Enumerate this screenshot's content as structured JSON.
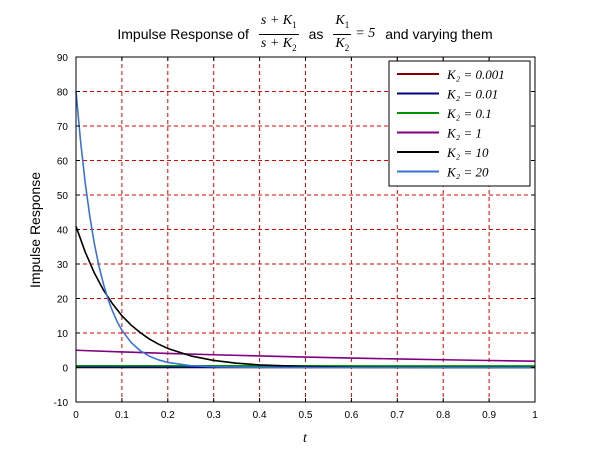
{
  "chart_data": {
    "type": "line",
    "title": {
      "prefix": "Impulse Response of",
      "frac1_num": "s + K",
      "frac1_num_sub": "1",
      "frac1_den": "s + K",
      "frac1_den_sub": "2",
      "mid": "as",
      "frac2_num": "K",
      "frac2_num_sub": "1",
      "frac2_den": "K",
      "frac2_den_sub": "2",
      "frac2_eq": "= 5",
      "suffix": "and varying them"
    },
    "xlabel": "t",
    "ylabel": "Impulse Response",
    "xlim": [
      0,
      1
    ],
    "ylim": [
      -10,
      90
    ],
    "xticks": [
      0,
      0.1,
      0.2,
      0.3,
      0.4,
      0.5,
      0.6,
      0.7,
      0.8,
      0.9,
      1
    ],
    "xtick_labels": [
      "0",
      "0.1",
      "0.2",
      "0.3",
      "0.4",
      "0.5",
      "0.6",
      "0.7",
      "0.8",
      "0.9",
      "1"
    ],
    "yticks": [
      -10,
      0,
      10,
      20,
      30,
      40,
      50,
      60,
      70,
      80,
      90
    ],
    "ytick_labels": [
      "-10",
      "0",
      "10",
      "20",
      "30",
      "40",
      "50",
      "60",
      "70",
      "80",
      "90"
    ],
    "grid": true,
    "legend_position": "top-right",
    "series": [
      {
        "name": "K₂ = 0.001",
        "color": "#800000",
        "x": [
          0,
          0.5,
          1
        ],
        "y": [
          0.005,
          0.005,
          0.005
        ]
      },
      {
        "name": "K₂ = 0.01",
        "color": "#000080",
        "x": [
          0,
          0.5,
          1
        ],
        "y": [
          0.05,
          0.05,
          0.05
        ]
      },
      {
        "name": "K₂ = 0.1",
        "color": "#009000",
        "x": [
          0,
          0.25,
          0.5,
          0.75,
          1
        ],
        "y": [
          0.5,
          0.49,
          0.48,
          0.46,
          0.45
        ]
      },
      {
        "name": "K₂ = 1",
        "color": "#800080",
        "x": [
          0,
          0.1,
          0.2,
          0.3,
          0.4,
          0.5,
          0.6,
          0.7,
          0.8,
          0.9,
          1
        ],
        "y": [
          5,
          4.52,
          4.09,
          3.7,
          3.35,
          3.03,
          2.74,
          2.48,
          2.25,
          2.03,
          1.84
        ]
      },
      {
        "name": "K₂ = 10",
        "color": "#000000",
        "x": [
          0,
          0.02,
          0.04,
          0.06,
          0.08,
          0.1,
          0.12,
          0.14,
          0.16,
          0.18,
          0.2,
          0.25,
          0.3,
          0.35,
          0.4,
          0.5,
          0.6,
          0.7,
          0.8,
          0.9,
          1
        ],
        "y": [
          40.9,
          33.5,
          27.4,
          22.4,
          18.4,
          15.0,
          12.3,
          10.1,
          8.24,
          6.75,
          5.52,
          3.36,
          2.04,
          1.24,
          0.75,
          0.28,
          0.1,
          0.04,
          0.01,
          0.005,
          0.002
        ]
      },
      {
        "name": "K₂ = 20",
        "color": "#3a73d6",
        "x": [
          0,
          0.01,
          0.02,
          0.03,
          0.04,
          0.05,
          0.06,
          0.07,
          0.08,
          0.09,
          0.1,
          0.12,
          0.14,
          0.16,
          0.18,
          0.2,
          0.25,
          0.3,
          0.4,
          0.5,
          0.6,
          0.7,
          0.8,
          0.9,
          1
        ],
        "y": [
          80.0,
          65.5,
          53.6,
          43.9,
          35.9,
          29.4,
          24.1,
          19.7,
          16.2,
          13.2,
          10.8,
          7.26,
          4.86,
          3.26,
          2.19,
          1.47,
          0.54,
          0.2,
          0.03,
          0.005,
          0.001,
          0,
          0,
          0,
          0
        ]
      }
    ]
  }
}
